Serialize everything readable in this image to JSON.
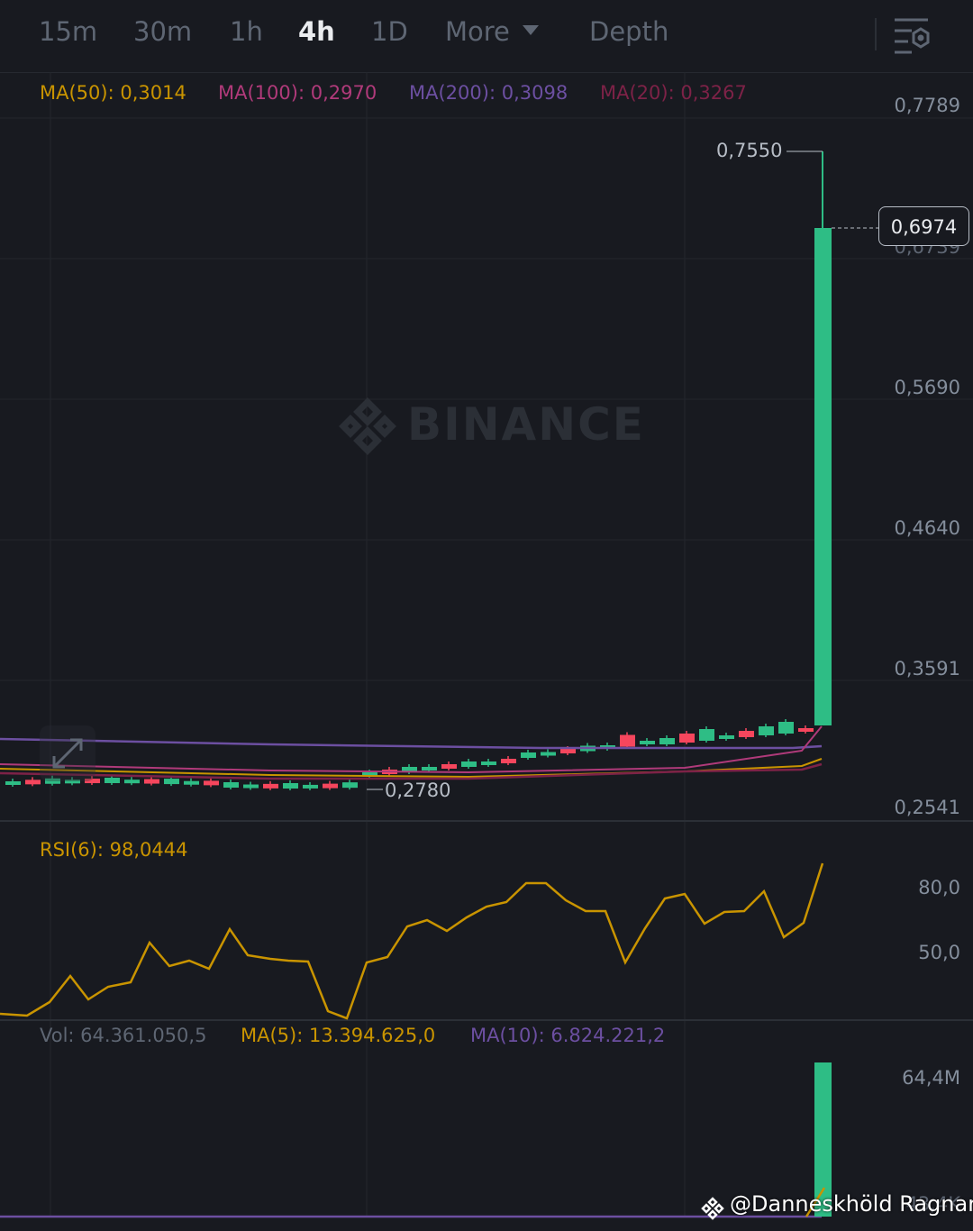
{
  "toolbar": {
    "tabs": [
      "15m",
      "30m",
      "1h",
      "4h",
      "1D",
      "More",
      "Depth"
    ],
    "active_tab": "4h"
  },
  "main_legend": {
    "ma50": "MA(50): 0,3014",
    "ma100": "MA(100): 0,2970",
    "ma200": "MA(200): 0,3098",
    "ma20": "MA(20): 0,3267"
  },
  "price_axis": [
    "0,7789",
    "0,5690",
    "0,4640",
    "0,3591",
    "0,2541"
  ],
  "partial_price_label": "0,6739",
  "current_price": "0,6974",
  "high_marker": "0,7550",
  "low_marker": "0,2780",
  "watermark": "BINANCE",
  "rsi": {
    "label": "RSI(6): 98,0444",
    "axis": [
      "80,0",
      "50,0"
    ]
  },
  "volume": {
    "vol": "Vol: 64.361.050,5",
    "ma5": "MA(5): 13.394.625,0",
    "ma10": "MA(10): 6.824.221,2",
    "axis_top": "64,4M",
    "axis_partial": "43,4K"
  },
  "attribution": "@Danneskhöld Ragnar",
  "colors": {
    "background": "#181a20",
    "up": "#2ebd85",
    "down": "#f6465d",
    "ma50": "#c99400",
    "ma100": "#b03a7a",
    "ma200": "#6c4fa1",
    "ma20": "#7d2247",
    "rsi": "#c99400"
  },
  "icons": [
    "caret-down-icon",
    "chart-settings-icon",
    "binance-logo-icon",
    "expand-icon"
  ]
}
